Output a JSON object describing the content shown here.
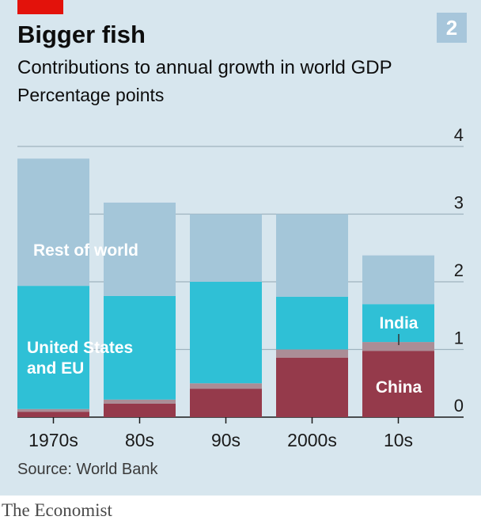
{
  "header": {
    "title": "Bigger fish",
    "subtitle": "Contributions to annual growth in world GDP",
    "unit": "Percentage points",
    "chart_number": "2"
  },
  "footer": {
    "source": "Source: World Bank",
    "brand": "The Economist"
  },
  "chart_data": {
    "type": "bar",
    "stacked": true,
    "title": "Bigger fish",
    "subtitle": "Contributions to annual growth in world GDP",
    "ylabel": "Percentage points",
    "categories": [
      "1970s",
      "80s",
      "90s",
      "2000s",
      "10s"
    ],
    "ylim": [
      0,
      4
    ],
    "yticks": [
      "0",
      "1",
      "2",
      "3",
      "4"
    ],
    "grid": true,
    "series": [
      {
        "name": "China",
        "color": "#953a4b",
        "values": [
          0.08,
          0.2,
          0.42,
          0.88,
          0.98
        ]
      },
      {
        "name": "India",
        "color": "#ab8d96",
        "values": [
          0.04,
          0.06,
          0.08,
          0.12,
          0.13
        ]
      },
      {
        "name": "United States and EU",
        "color": "#2fc0d6",
        "values": [
          1.82,
          1.53,
          1.5,
          0.78,
          0.56
        ]
      },
      {
        "name": "Rest of world",
        "color": "#a4c6d9",
        "values": [
          1.88,
          1.38,
          1.0,
          1.22,
          0.72
        ]
      }
    ],
    "labels": {
      "rest_of_world": "Rest of world",
      "us_eu_line1": "United States",
      "us_eu_line2": "and EU",
      "india": "India",
      "china": "China"
    }
  }
}
